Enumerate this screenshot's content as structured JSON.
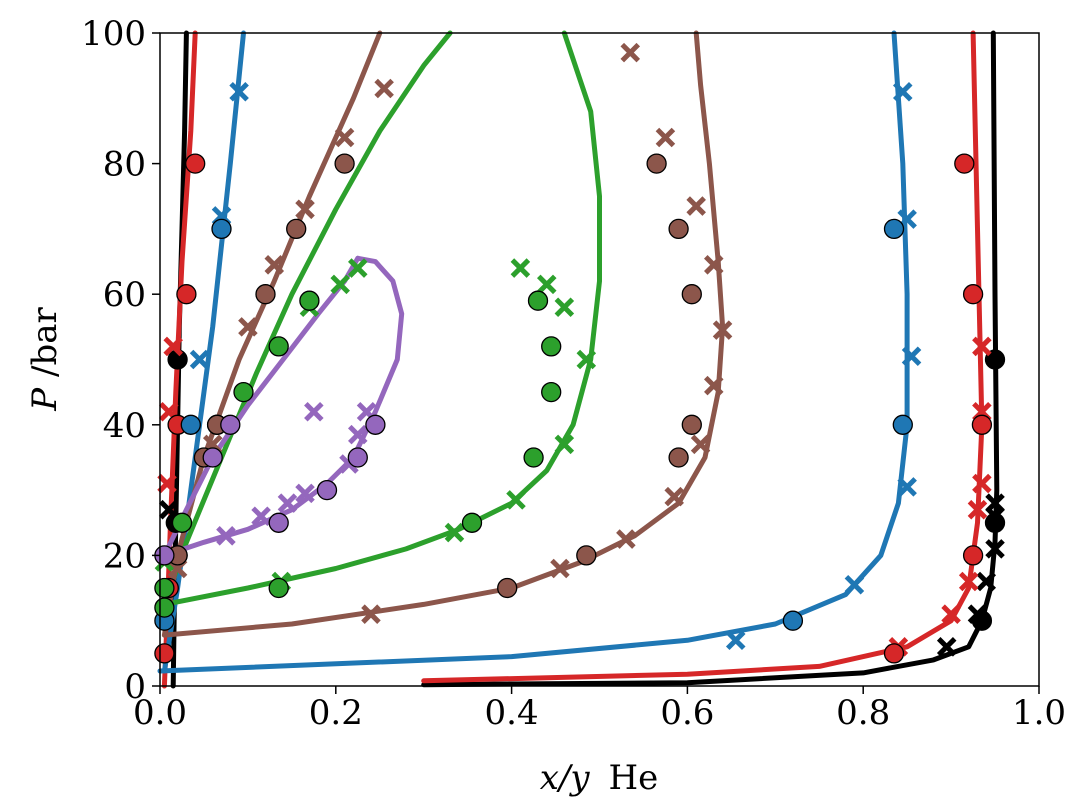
{
  "chart_data": {
    "type": "scatter",
    "title": "",
    "xlabel": {
      "var": "x/y",
      "species": "He"
    },
    "ylabel": {
      "var": "P",
      "unit": "/bar"
    },
    "xlim": [
      0.0,
      1.0
    ],
    "ylim": [
      0,
      100
    ],
    "x_ticks": [
      "0.0",
      "0.2",
      "0.4",
      "0.6",
      "0.8",
      "1.0"
    ],
    "y_ticks": [
      "0",
      "20",
      "40",
      "60",
      "80",
      "100"
    ],
    "grid": false,
    "legend": "none",
    "series": [
      {
        "color": "#000000",
        "curve_liquid": [
          [
            0.015,
            0
          ],
          [
            0.016,
            10
          ],
          [
            0.018,
            25
          ],
          [
            0.02,
            40
          ],
          [
            0.022,
            55
          ],
          [
            0.025,
            70
          ],
          [
            0.028,
            85
          ],
          [
            0.03,
            100
          ]
        ],
        "curve_vapor": [
          [
            0.3,
            0.2
          ],
          [
            0.6,
            0.5
          ],
          [
            0.8,
            2
          ],
          [
            0.88,
            4
          ],
          [
            0.92,
            6
          ],
          [
            0.935,
            10
          ],
          [
            0.945,
            15
          ],
          [
            0.95,
            22
          ],
          [
            0.952,
            30
          ],
          [
            0.95,
            60
          ],
          [
            0.948,
            100
          ]
        ],
        "points_circle": [
          [
            0.018,
            25
          ],
          [
            0.02,
            50
          ],
          [
            0.935,
            10
          ],
          [
            0.95,
            25
          ],
          [
            0.95,
            50
          ]
        ],
        "points_cross": [
          [
            0.01,
            27
          ],
          [
            0.895,
            6
          ],
          [
            0.93,
            11
          ],
          [
            0.94,
            16
          ],
          [
            0.95,
            21
          ],
          [
            0.95,
            26
          ],
          [
            0.95,
            28
          ]
        ]
      },
      {
        "color": "#d62728",
        "curve_liquid": [
          [
            0.005,
            0
          ],
          [
            0.008,
            10
          ],
          [
            0.012,
            25
          ],
          [
            0.018,
            45
          ],
          [
            0.025,
            65
          ],
          [
            0.035,
            85
          ],
          [
            0.04,
            100
          ]
        ],
        "curve_vapor": [
          [
            0.3,
            0.8
          ],
          [
            0.6,
            1.8
          ],
          [
            0.75,
            3
          ],
          [
            0.85,
            6
          ],
          [
            0.9,
            10
          ],
          [
            0.92,
            15
          ],
          [
            0.93,
            25
          ],
          [
            0.935,
            40
          ],
          [
            0.93,
            70
          ],
          [
            0.925,
            100
          ]
        ],
        "points_circle": [
          [
            0.005,
            5
          ],
          [
            0.01,
            15
          ],
          [
            0.02,
            20
          ],
          [
            0.02,
            40
          ],
          [
            0.03,
            60
          ],
          [
            0.04,
            80
          ],
          [
            0.835,
            5
          ],
          [
            0.925,
            20
          ],
          [
            0.935,
            40
          ],
          [
            0.925,
            60
          ],
          [
            0.915,
            80
          ]
        ],
        "points_cross": [
          [
            0.008,
            31
          ],
          [
            0.01,
            42
          ],
          [
            0.015,
            52
          ],
          [
            0.84,
            6
          ],
          [
            0.9,
            11
          ],
          [
            0.92,
            16
          ],
          [
            0.93,
            27
          ],
          [
            0.935,
            31
          ],
          [
            0.935,
            42
          ],
          [
            0.935,
            52
          ]
        ]
      },
      {
        "color": "#1f77b4",
        "curve_liquid": [
          [
            0.005,
            2.3
          ],
          [
            0.02,
            15
          ],
          [
            0.04,
            35
          ],
          [
            0.06,
            55
          ],
          [
            0.08,
            80
          ],
          [
            0.095,
            100
          ]
        ],
        "curve_vapor": [
          [
            0.0,
            2.3
          ],
          [
            0.4,
            4.5
          ],
          [
            0.6,
            7
          ],
          [
            0.7,
            9.5
          ],
          [
            0.78,
            14
          ],
          [
            0.82,
            20
          ],
          [
            0.84,
            28
          ],
          [
            0.85,
            40
          ],
          [
            0.85,
            60
          ],
          [
            0.845,
            80
          ],
          [
            0.835,
            100
          ]
        ],
        "points_circle": [
          [
            0.005,
            10
          ],
          [
            0.035,
            40
          ],
          [
            0.07,
            70
          ],
          [
            0.72,
            10
          ],
          [
            0.835,
            70
          ],
          [
            0.845,
            40
          ]
        ],
        "points_cross": [
          [
            0.045,
            50
          ],
          [
            0.07,
            72
          ],
          [
            0.09,
            91
          ],
          [
            0.655,
            7
          ],
          [
            0.79,
            15.5
          ],
          [
            0.85,
            30.5
          ],
          [
            0.855,
            50.5
          ],
          [
            0.85,
            71.5
          ],
          [
            0.845,
            91
          ]
        ]
      },
      {
        "color": "#2ca02c",
        "curve_liquid": [
          [
            0.005,
            12.5
          ],
          [
            0.03,
            22
          ],
          [
            0.07,
            35
          ],
          [
            0.11,
            48
          ],
          [
            0.15,
            60
          ],
          [
            0.2,
            73
          ],
          [
            0.25,
            85
          ],
          [
            0.3,
            95
          ],
          [
            0.33,
            100
          ]
        ],
        "curve_vapor": [
          [
            0.005,
            12.5
          ],
          [
            0.1,
            15
          ],
          [
            0.2,
            18
          ],
          [
            0.28,
            21
          ],
          [
            0.34,
            24
          ],
          [
            0.4,
            28
          ],
          [
            0.44,
            33
          ],
          [
            0.47,
            40
          ],
          [
            0.49,
            50
          ],
          [
            0.5,
            62
          ],
          [
            0.5,
            75
          ],
          [
            0.49,
            88
          ],
          [
            0.46,
            100
          ]
        ],
        "points_circle": [
          [
            0.005,
            12
          ],
          [
            0.005,
            15
          ],
          [
            0.025,
            25
          ],
          [
            0.065,
            40
          ],
          [
            0.095,
            45
          ],
          [
            0.135,
            52
          ],
          [
            0.17,
            59
          ],
          [
            0.135,
            15
          ],
          [
            0.355,
            25
          ],
          [
            0.425,
            35
          ],
          [
            0.445,
            45
          ],
          [
            0.445,
            52
          ],
          [
            0.43,
            59
          ]
        ],
        "points_cross": [
          [
            0.005,
            19
          ],
          [
            0.138,
            16
          ],
          [
            0.17,
            58
          ],
          [
            0.205,
            61.5
          ],
          [
            0.225,
            64
          ],
          [
            0.335,
            23.5
          ],
          [
            0.405,
            28.5
          ],
          [
            0.46,
            37
          ],
          [
            0.485,
            50
          ],
          [
            0.46,
            58
          ],
          [
            0.44,
            61.5
          ],
          [
            0.41,
            64
          ]
        ]
      },
      {
        "color": "#8c564b",
        "curve_liquid": [
          [
            0.005,
            7.8
          ],
          [
            0.02,
            20
          ],
          [
            0.05,
            35
          ],
          [
            0.09,
            50
          ],
          [
            0.13,
            62
          ],
          [
            0.17,
            75
          ],
          [
            0.22,
            90
          ],
          [
            0.25,
            100
          ]
        ],
        "curve_vapor": [
          [
            0.005,
            7.8
          ],
          [
            0.15,
            9.5
          ],
          [
            0.3,
            12.5
          ],
          [
            0.4,
            15
          ],
          [
            0.48,
            19
          ],
          [
            0.54,
            23
          ],
          [
            0.59,
            28
          ],
          [
            0.62,
            35
          ],
          [
            0.635,
            45
          ],
          [
            0.64,
            55
          ],
          [
            0.635,
            65
          ],
          [
            0.625,
            80
          ],
          [
            0.615,
            92
          ],
          [
            0.61,
            100
          ]
        ],
        "points_circle": [
          [
            0.02,
            20
          ],
          [
            0.05,
            35
          ],
          [
            0.065,
            40
          ],
          [
            0.12,
            60
          ],
          [
            0.155,
            70
          ],
          [
            0.21,
            80
          ],
          [
            0.395,
            15
          ],
          [
            0.485,
            20
          ],
          [
            0.59,
            35
          ],
          [
            0.605,
            40
          ],
          [
            0.605,
            60
          ],
          [
            0.59,
            70
          ],
          [
            0.565,
            80
          ]
        ],
        "points_cross": [
          [
            0.02,
            18
          ],
          [
            0.06,
            37
          ],
          [
            0.1,
            55
          ],
          [
            0.13,
            64.5
          ],
          [
            0.165,
            73
          ],
          [
            0.21,
            84
          ],
          [
            0.255,
            91.5
          ],
          [
            0.24,
            11
          ],
          [
            0.455,
            18
          ],
          [
            0.53,
            22.5
          ],
          [
            0.585,
            29
          ],
          [
            0.615,
            37
          ],
          [
            0.63,
            46
          ],
          [
            0.64,
            54.5
          ],
          [
            0.63,
            64.5
          ],
          [
            0.61,
            73.5
          ],
          [
            0.575,
            84
          ],
          [
            0.535,
            97
          ]
        ]
      },
      {
        "color": "#9467bd",
        "curve_liquid": [
          [
            0.005,
            20
          ],
          [
            0.03,
            27
          ],
          [
            0.06,
            35
          ],
          [
            0.1,
            43
          ],
          [
            0.14,
            50
          ],
          [
            0.18,
            57
          ],
          [
            0.21,
            62
          ],
          [
            0.225,
            65.5
          ]
        ],
        "curve_vapor": [
          [
            0.005,
            20
          ],
          [
            0.05,
            22
          ],
          [
            0.1,
            24
          ],
          [
            0.15,
            27
          ],
          [
            0.19,
            31
          ],
          [
            0.22,
            35
          ],
          [
            0.245,
            42
          ],
          [
            0.27,
            50
          ],
          [
            0.275,
            57
          ],
          [
            0.265,
            62
          ],
          [
            0.245,
            65
          ],
          [
            0.225,
            65.5
          ]
        ],
        "points_circle": [
          [
            0.005,
            20
          ],
          [
            0.06,
            35
          ],
          [
            0.08,
            40
          ],
          [
            0.135,
            25
          ],
          [
            0.19,
            30
          ],
          [
            0.225,
            35
          ],
          [
            0.245,
            40
          ]
        ],
        "points_cross": [
          [
            0.075,
            23
          ],
          [
            0.115,
            26
          ],
          [
            0.145,
            28
          ],
          [
            0.165,
            29.5
          ],
          [
            0.215,
            34
          ],
          [
            0.225,
            38.5
          ],
          [
            0.235,
            42
          ],
          [
            0.175,
            42
          ]
        ]
      }
    ]
  }
}
